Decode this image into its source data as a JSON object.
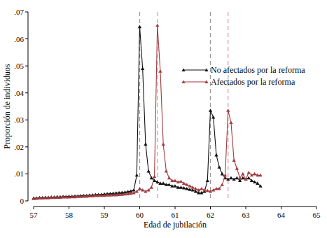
{
  "chart_data": {
    "type": "line",
    "x_label": "Edad de jubilación",
    "y_label": "Proporción de individuos",
    "x": [
      57,
      57.083,
      57.167,
      57.25,
      57.333,
      57.417,
      57.5,
      57.583,
      57.667,
      57.75,
      57.833,
      57.917,
      58,
      58.083,
      58.167,
      58.25,
      58.333,
      58.417,
      58.5,
      58.583,
      58.667,
      58.75,
      58.833,
      58.917,
      59,
      59.083,
      59.167,
      59.25,
      59.333,
      59.417,
      59.5,
      59.583,
      59.667,
      59.75,
      59.833,
      59.917,
      60,
      60.083,
      60.167,
      60.25,
      60.333,
      60.417,
      60.5,
      60.583,
      60.667,
      60.75,
      60.833,
      60.917,
      61,
      61.083,
      61.167,
      61.25,
      61.333,
      61.417,
      61.5,
      61.583,
      61.667,
      61.75,
      61.833,
      61.917,
      62,
      62.083,
      62.167,
      62.25,
      62.333,
      62.417,
      62.5,
      62.583,
      62.667,
      62.75,
      62.833,
      62.917,
      63,
      63.083,
      63.167,
      63.25,
      63.333,
      63.417
    ],
    "series": [
      {
        "name": "No afectados por la reforma",
        "color": "#111111",
        "marker": "triangle",
        "line_style": "solid",
        "values": [
          0.001,
          0.001,
          0.0012,
          0.0012,
          0.0013,
          0.0013,
          0.0014,
          0.0014,
          0.0015,
          0.0015,
          0.0016,
          0.0016,
          0.0017,
          0.0017,
          0.0018,
          0.0018,
          0.0019,
          0.002,
          0.002,
          0.0021,
          0.0022,
          0.0023,
          0.0023,
          0.0024,
          0.0025,
          0.0026,
          0.0027,
          0.0028,
          0.0029,
          0.003,
          0.0031,
          0.0032,
          0.0034,
          0.0036,
          0.004,
          0.0095,
          0.0645,
          0.049,
          0.021,
          0.011,
          0.0085,
          0.0075,
          0.007,
          0.0065,
          0.0065,
          0.006,
          0.006,
          0.0055,
          0.0055,
          0.005,
          0.005,
          0.0048,
          0.0045,
          0.0042,
          0.004,
          0.0035,
          0.003,
          0.003,
          0.0035,
          0.0075,
          0.0335,
          0.031,
          0.017,
          0.0125,
          0.01,
          0.0085,
          0.008,
          0.0085,
          0.008,
          0.0085,
          0.0075,
          0.0085,
          0.008,
          0.0085,
          0.0075,
          0.007,
          0.0065,
          0.0055
        ]
      },
      {
        "name": "Afectados por la reforma",
        "color": "#a23b3f",
        "marker": "triangle",
        "line_style": "solid",
        "values": [
          0.0008,
          0.0009,
          0.001,
          0.001,
          0.0011,
          0.0011,
          0.0012,
          0.0012,
          0.0013,
          0.0013,
          0.0014,
          0.0014,
          0.0014,
          0.0015,
          0.0015,
          0.0016,
          0.0016,
          0.0017,
          0.0017,
          0.0018,
          0.0018,
          0.0019,
          0.0019,
          0.002,
          0.002,
          0.0021,
          0.0021,
          0.0022,
          0.0022,
          0.0023,
          0.0024,
          0.0025,
          0.0026,
          0.0028,
          0.003,
          0.0035,
          0.0045,
          0.004,
          0.0035,
          0.004,
          0.005,
          0.009,
          0.065,
          0.048,
          0.021,
          0.011,
          0.0085,
          0.0075,
          0.0075,
          0.007,
          0.0072,
          0.0065,
          0.006,
          0.0055,
          0.005,
          0.0045,
          0.004,
          0.0045,
          0.004,
          0.0038,
          0.0035,
          0.004,
          0.0045,
          0.0045,
          0.006,
          0.0095,
          0.0335,
          0.029,
          0.015,
          0.012,
          0.0085,
          0.01,
          0.008,
          0.0105,
          0.0095,
          0.01,
          0.0095,
          0.0095
        ]
      }
    ],
    "vlines": [
      {
        "x": 60,
        "color": "#9a9a9a",
        "line_style": "dashed"
      },
      {
        "x": 60.5,
        "color": "#d9a3a6",
        "line_style": "dashed"
      },
      {
        "x": 62,
        "color": "#9a9a9a",
        "line_style": "dashed"
      },
      {
        "x": 62.5,
        "color": "#d9a3a6",
        "line_style": "dashed"
      }
    ],
    "xlim": [
      57,
      65
    ],
    "xticks": [
      57,
      58,
      59,
      60,
      61,
      62,
      63,
      64,
      65
    ],
    "ylim": [
      0,
      0.07
    ],
    "yticks": [
      0,
      {
        "value": 0.01,
        "label": ".01"
      },
      {
        "value": 0.02,
        "label": ".02"
      },
      {
        "value": 0.03,
        "label": ".03"
      },
      {
        "value": 0.04,
        "label": ".04"
      },
      {
        "value": 0.05,
        "label": ".05"
      },
      {
        "value": 0.06,
        "label": ".06"
      },
      {
        "value": 0.07,
        "label": ".07"
      }
    ],
    "grid": false,
    "legend": "right"
  }
}
